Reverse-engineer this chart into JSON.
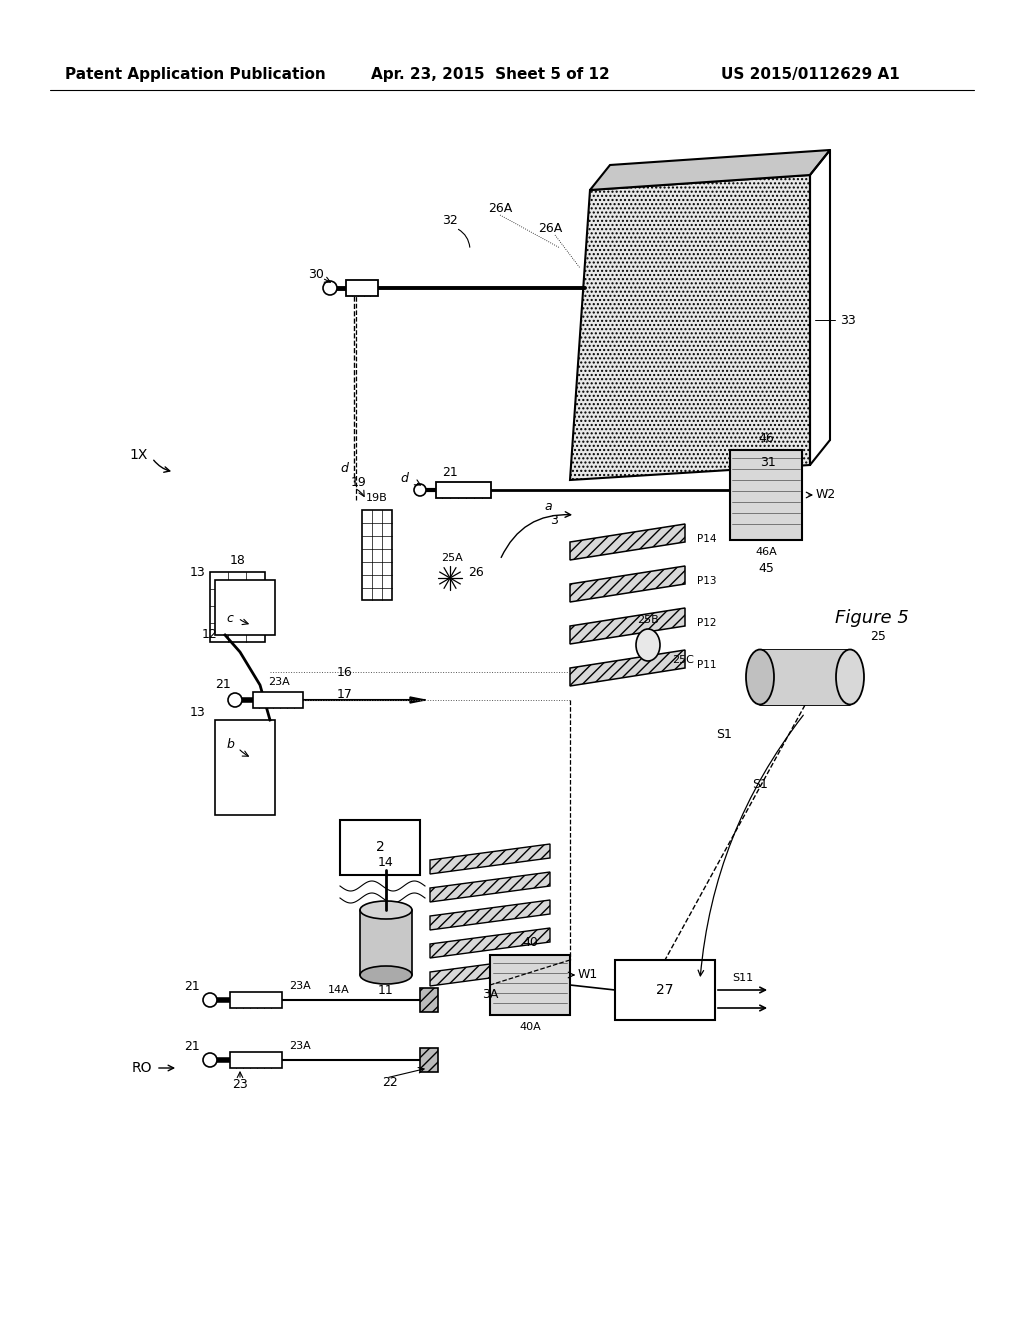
{
  "title_left": "Patent Application Publication",
  "title_mid": "Apr. 23, 2015  Sheet 5 of 12",
  "title_right": "US 2015/0112629 A1",
  "figure_label": "Figure 5",
  "bg_color": "#ffffff"
}
